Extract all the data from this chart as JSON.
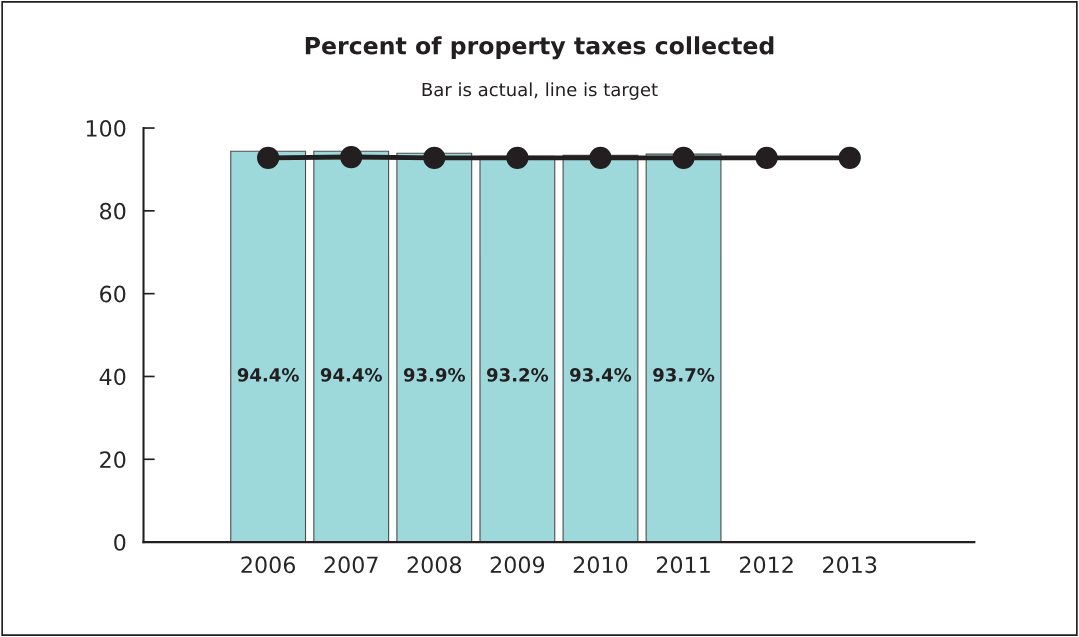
{
  "chart_data": {
    "type": "bar",
    "title": "Percent of property taxes collected",
    "subtitle": "Bar is actual, line is target",
    "categories": [
      "2006",
      "2007",
      "2008",
      "2009",
      "2010",
      "2011",
      "2012",
      "2013"
    ],
    "series": [
      {
        "color": "#9dd8db",
        "values": [
          94.4,
          94.4,
          93.9,
          93.2,
          93.4,
          93.7,
          null,
          null
        ],
        "value_labels": [
          "94.4%",
          "94.4%",
          "93.9%",
          "93.2%",
          "93.4%",
          "93.7%",
          null,
          null
        ]
      },
      {
        "type": "line",
        "color": "#231f20",
        "values": [
          92.8,
          93.0,
          92.8,
          92.8,
          92.8,
          92.8,
          92.8,
          92.8
        ],
        "marker": "circle"
      }
    ],
    "ylim": [
      0,
      100
    ],
    "yticks": [
      0,
      20,
      40,
      60,
      80,
      100
    ],
    "grid": false,
    "legend": false
  }
}
